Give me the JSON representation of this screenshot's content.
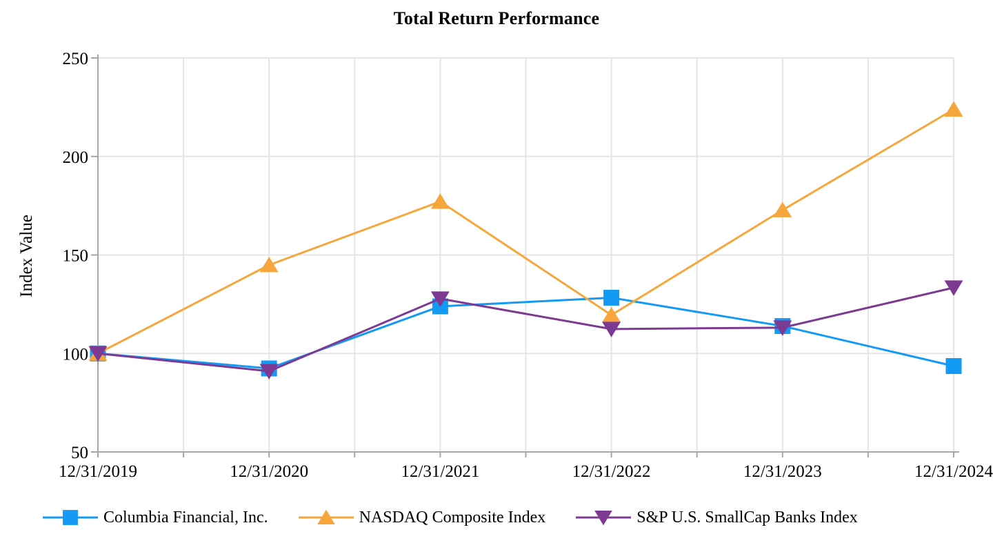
{
  "page": {
    "title": "Total Return Performance"
  },
  "chart_data": {
    "type": "line",
    "title": "Total Return Performance",
    "xlabel": "",
    "ylabel": "Index Value",
    "categories": [
      "12/31/2019",
      "12/31/2020",
      "12/31/2021",
      "12/31/2022",
      "12/31/2023",
      "12/31/2024"
    ],
    "y_ticks": [
      50,
      100,
      150,
      200,
      250
    ],
    "ylim": [
      50,
      250
    ],
    "grid": {
      "horizontal": true,
      "vertical": true,
      "vertical_interval": "half-period"
    },
    "legend_position": "bottom",
    "axis_color": "#a6a6a6",
    "gridline_color": "#e5e5e5",
    "text_color": "#000000",
    "series": [
      {
        "name": "Columbia Financial, Inc.",
        "marker": "square",
        "color": "#129af5",
        "values": [
          100.0,
          92.4,
          123.9,
          128.3,
          113.9,
          93.6
        ]
      },
      {
        "name": "NASDAQ Composite Index",
        "marker": "triangle-up",
        "color": "#f7a63b",
        "values": [
          100.0,
          144.9,
          177.1,
          119.5,
          172.8,
          223.9
        ]
      },
      {
        "name": "S&P U.S. SmallCap Banks Index",
        "marker": "triangle-down",
        "color": "#7d3a93",
        "values": [
          100.0,
          91.0,
          127.8,
          112.4,
          113.1,
          133.4
        ]
      }
    ]
  }
}
